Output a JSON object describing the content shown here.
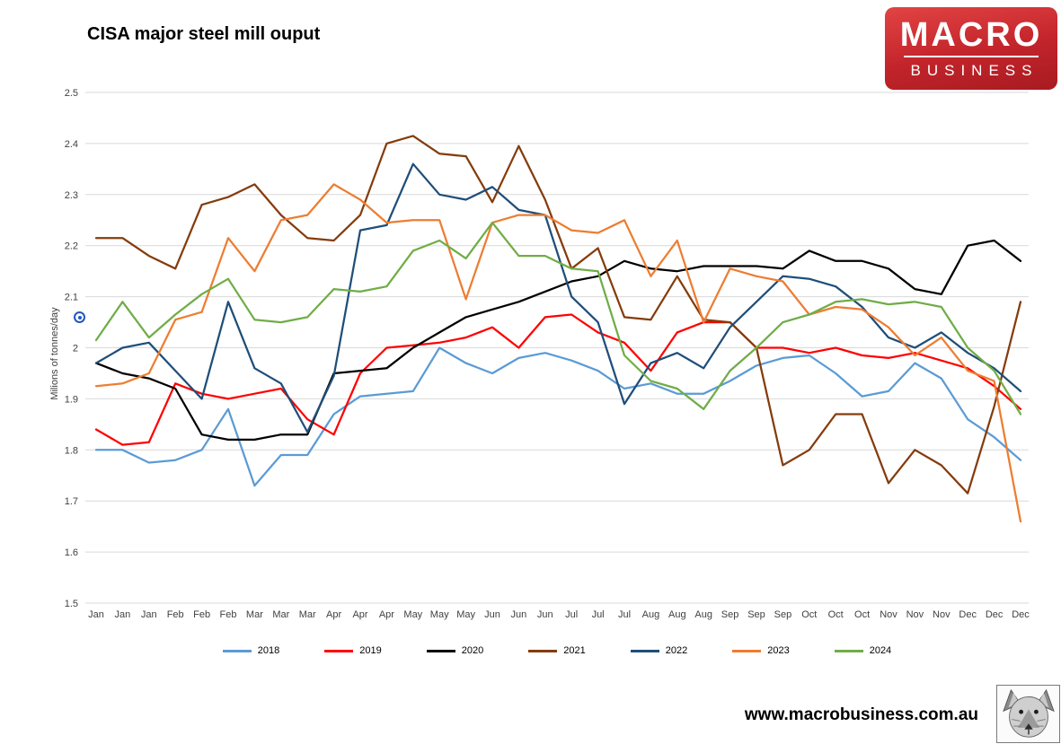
{
  "header": {
    "title": "CISA major steel mill ouput"
  },
  "logo": {
    "line1": "MACRO",
    "line2": "BUSINESS",
    "background_color": "#c2242b",
    "text_color": "#ffffff"
  },
  "footer": {
    "url": "www.macrobusiness.com.au"
  },
  "icons": {
    "marker": "circled-dot-icon",
    "wolf": "wolf-logo-icon"
  },
  "chart_data": {
    "type": "line",
    "title": "CISA major steel mill ouput",
    "xlabel": "",
    "ylabel": "Milions of tonnes/day",
    "ylim": [
      1.5,
      2.5
    ],
    "ytick_labels": [
      "1.5",
      "1.6",
      "1.7",
      "1.8",
      "1.9",
      "2",
      "2.1",
      "2.2",
      "2.3",
      "2.4",
      "2.5"
    ],
    "grid": true,
    "legend_position": "bottom",
    "x_labels": [
      "Jan",
      "Jan",
      "Jan",
      "Feb",
      "Feb",
      "Feb",
      "Mar",
      "Mar",
      "Mar",
      "Apr",
      "Apr",
      "Apr",
      "May",
      "May",
      "May",
      "Jun",
      "Jun",
      "Jun",
      "Jul",
      "Jul",
      "Jul",
      "Aug",
      "Aug",
      "Aug",
      "Sep",
      "Sep",
      "Sep",
      "Oct",
      "Oct",
      "Oct",
      "Nov",
      "Nov",
      "Nov",
      "Dec",
      "Dec",
      "Dec"
    ],
    "series": [
      {
        "name": "2018",
        "color": "#5B9BD5",
        "values": [
          1.8,
          1.8,
          1.775,
          1.78,
          1.8,
          1.88,
          1.73,
          1.79,
          1.79,
          1.87,
          1.905,
          1.91,
          1.915,
          2.0,
          1.97,
          1.95,
          1.98,
          1.99,
          1.975,
          1.955,
          1.92,
          1.93,
          1.91,
          1.91,
          1.935,
          1.965,
          1.98,
          1.985,
          1.95,
          1.905,
          1.915,
          1.97,
          1.94,
          1.86,
          1.825,
          1.78
        ]
      },
      {
        "name": "2019",
        "color": "#FF0000",
        "values": [
          1.84,
          1.81,
          1.815,
          1.93,
          1.91,
          1.9,
          1.91,
          1.92,
          1.86,
          1.83,
          1.95,
          2.0,
          2.005,
          2.01,
          2.02,
          2.04,
          2.0,
          2.06,
          2.065,
          2.03,
          2.01,
          1.955,
          2.03,
          2.05,
          2.05,
          2.0,
          2.0,
          1.99,
          2.0,
          1.985,
          1.98,
          1.99,
          1.975,
          1.96,
          1.925,
          1.88
        ]
      },
      {
        "name": "2020",
        "color": "#000000",
        "values": [
          1.97,
          1.95,
          1.94,
          1.92,
          1.83,
          1.82,
          1.82,
          1.83,
          1.83,
          1.95,
          1.955,
          1.96,
          2.0,
          2.03,
          2.06,
          2.075,
          2.09,
          2.11,
          2.13,
          2.14,
          2.17,
          2.155,
          2.15,
          2.16,
          2.16,
          2.16,
          2.155,
          2.19,
          2.17,
          2.17,
          2.155,
          2.115,
          2.105,
          2.2,
          2.21,
          2.17
        ]
      },
      {
        "name": "2021",
        "color": "#843C0C",
        "values": [
          2.215,
          2.215,
          2.18,
          2.155,
          2.28,
          2.295,
          2.32,
          2.26,
          2.215,
          2.21,
          2.26,
          2.4,
          2.415,
          2.38,
          2.375,
          2.285,
          2.395,
          2.29,
          2.155,
          2.195,
          2.06,
          2.055,
          2.14,
          2.055,
          2.05,
          2.0,
          1.77,
          1.8,
          1.87,
          1.87,
          1.735,
          1.8,
          1.77,
          1.715,
          1.885,
          2.09
        ]
      },
      {
        "name": "2022",
        "color": "#1F4E79",
        "values": [
          1.97,
          2.0,
          2.01,
          1.955,
          1.9,
          2.09,
          1.96,
          1.93,
          1.835,
          1.945,
          2.23,
          2.24,
          2.36,
          2.3,
          2.29,
          2.315,
          2.27,
          2.26,
          2.1,
          2.05,
          1.89,
          1.97,
          1.99,
          1.96,
          2.04,
          2.09,
          2.14,
          2.135,
          2.12,
          2.08,
          2.02,
          2.0,
          2.03,
          1.99,
          1.96,
          1.915
        ]
      },
      {
        "name": "2023",
        "color": "#ED7D31",
        "values": [
          1.925,
          1.93,
          1.95,
          2.055,
          2.07,
          2.215,
          2.15,
          2.25,
          2.26,
          2.32,
          2.29,
          2.245,
          2.25,
          2.25,
          2.095,
          2.245,
          2.26,
          2.26,
          2.23,
          2.225,
          2.25,
          2.14,
          2.21,
          2.05,
          2.155,
          2.14,
          2.13,
          2.065,
          2.08,
          2.075,
          2.04,
          1.985,
          2.02,
          1.955,
          1.935,
          1.66
        ]
      },
      {
        "name": "2024",
        "color": "#70AD47",
        "values": [
          2.015,
          2.09,
          2.02,
          2.065,
          2.105,
          2.135,
          2.055,
          2.05,
          2.06,
          2.115,
          2.11,
          2.12,
          2.19,
          2.21,
          2.175,
          2.245,
          2.18,
          2.18,
          2.155,
          2.15,
          1.985,
          1.935,
          1.92,
          1.88,
          1.955,
          2.0,
          2.05,
          2.065,
          2.09,
          2.095,
          2.085,
          2.09,
          2.08,
          2.0,
          1.955,
          1.87
        ]
      }
    ]
  }
}
